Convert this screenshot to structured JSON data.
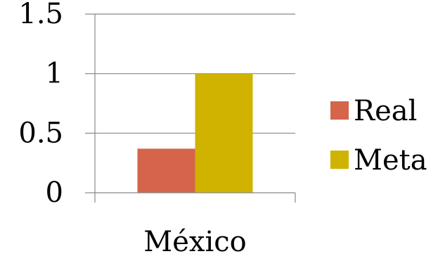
{
  "chart_data": {
    "type": "bar",
    "categories": [
      "México"
    ],
    "series": [
      {
        "name": "Real",
        "values": [
          0.37
        ],
        "color": "#d4654a"
      },
      {
        "name": "Meta",
        "values": [
          1.0
        ],
        "color": "#cfb300"
      }
    ],
    "ylim": [
      0,
      1.5
    ],
    "yticks": [
      "0",
      "0.5",
      "1",
      "1.5"
    ],
    "ytick_values": [
      0,
      0.5,
      1,
      1.5
    ],
    "grid": true,
    "gridline_color": "#888888",
    "legend": "right"
  }
}
